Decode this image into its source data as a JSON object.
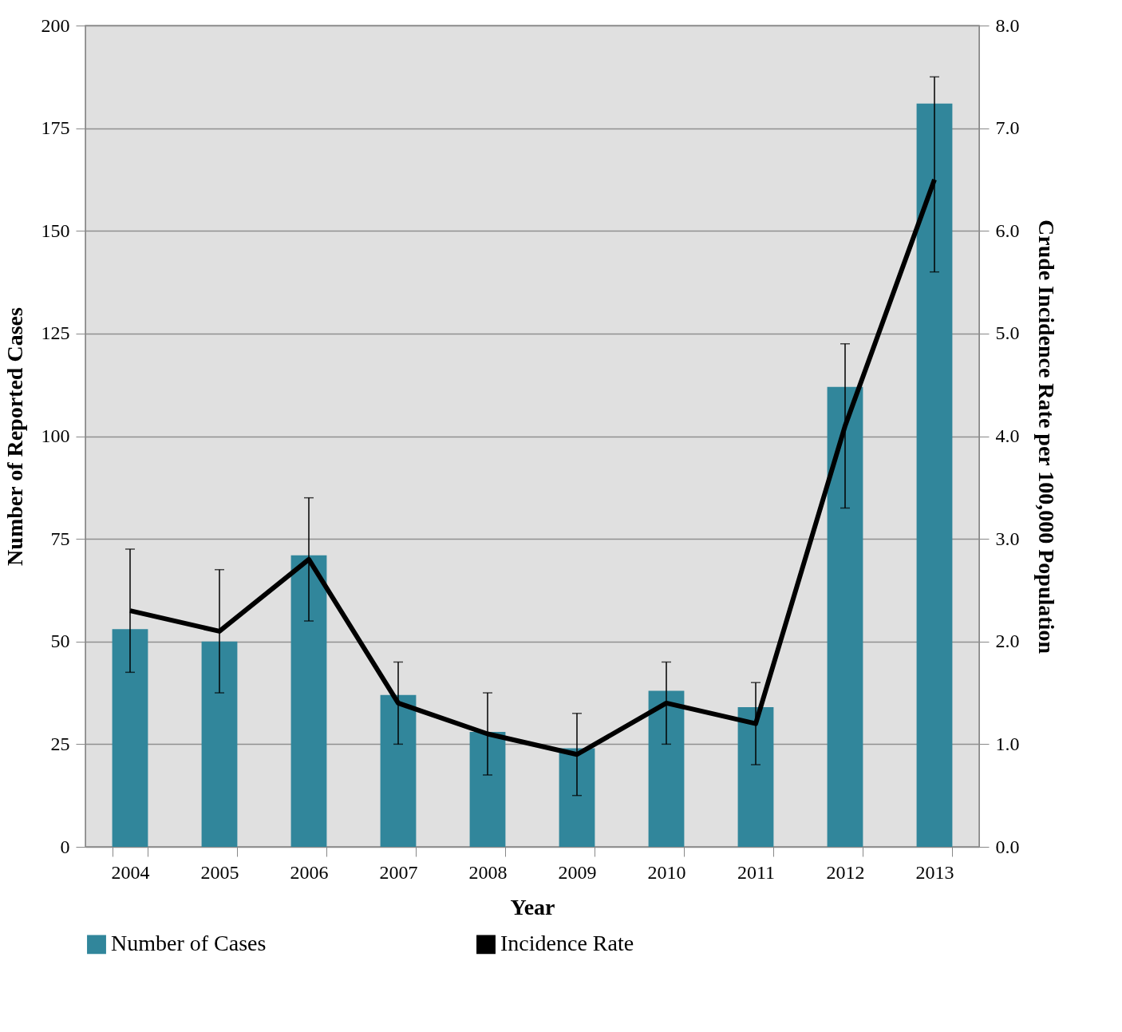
{
  "chart_data": {
    "type": "bar",
    "xlabel": "Year",
    "ylabel": "Number of Reported Cases",
    "y2label": "Crude Incidence Rate per 100,000 Population",
    "categories": [
      "2004",
      "2005",
      "2006",
      "2007",
      "2008",
      "2009",
      "2010",
      "2011",
      "2012",
      "2013"
    ],
    "series": [
      {
        "name": "Number of Cases",
        "color": "#31869b",
        "values": [
          53,
          50,
          71,
          37,
          28,
          24,
          38,
          34,
          112,
          181
        ]
      },
      {
        "name": "Incidence Rate",
        "type": "line",
        "axis": "y2",
        "color": "#000000",
        "values": [
          2.3,
          2.1,
          2.8,
          1.4,
          1.1,
          0.9,
          1.4,
          1.2,
          4.1,
          6.5
        ],
        "errors": [
          [
            1.7,
            2.9
          ],
          [
            1.5,
            2.7
          ],
          [
            2.2,
            3.4
          ],
          [
            1.0,
            1.8
          ],
          [
            0.7,
            1.5
          ],
          [
            0.5,
            1.3
          ],
          [
            1.0,
            1.8
          ],
          [
            0.8,
            1.6
          ],
          [
            3.3,
            4.9
          ],
          [
            5.6,
            7.5
          ]
        ]
      }
    ],
    "ylim": [
      0,
      200
    ],
    "yticks": [
      0,
      25,
      50,
      75,
      100,
      125,
      150,
      175,
      200
    ],
    "y2lim": [
      0,
      8
    ],
    "y2ticks": [
      {
        "value": 0,
        "label": "0.0"
      },
      {
        "value": 1,
        "label": "1.0"
      },
      {
        "value": 2,
        "label": "2.0"
      },
      {
        "value": 3,
        "label": "3.0"
      },
      {
        "value": 4,
        "label": "4.0"
      },
      {
        "value": 5,
        "label": "5.0"
      },
      {
        "value": 6,
        "label": "6.0"
      },
      {
        "value": 7,
        "label": "7.0"
      },
      {
        "value": 8,
        "label": "8.0"
      }
    ],
    "grid": "y",
    "legend": "bottom"
  }
}
